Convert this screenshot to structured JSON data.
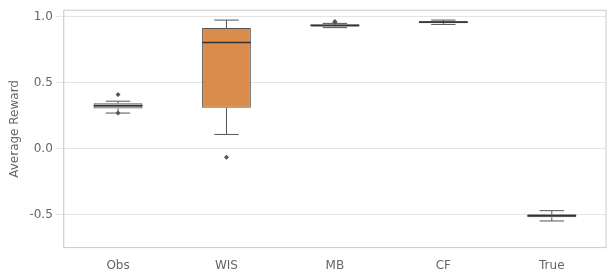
{
  "chart_data": {
    "type": "box",
    "categories": [
      "Obs",
      "WIS",
      "MB",
      "CF",
      "True"
    ],
    "ylabel": "Average Reward",
    "ylim": [
      -0.75,
      1.05
    ],
    "yticks": [
      -0.5,
      {
        "value": 0.0,
        "label": "0.0"
      },
      0.5,
      {
        "value": 1.0,
        "label": "1.0"
      }
    ],
    "grid": true,
    "colors": [
      "#999999",
      "#d4782a",
      "#999999",
      "#999999",
      "#7b6eb0"
    ],
    "boxes": [
      {
        "q1": 0.305,
        "median": 0.325,
        "q3": 0.345,
        "whislo": 0.27,
        "whishi": 0.36,
        "fliers": [
          0.27,
          0.41
        ]
      },
      {
        "q1": 0.31,
        "median": 0.805,
        "q3": 0.915,
        "whislo": 0.108,
        "whishi": 0.975,
        "fliers": [
          -0.065
        ]
      },
      {
        "q1": 0.925,
        "median": 0.935,
        "q3": 0.942,
        "whislo": 0.918,
        "whishi": 0.95,
        "fliers": [
          0.958,
          0.965
        ]
      },
      {
        "q1": 0.952,
        "median": 0.96,
        "q3": 0.966,
        "whislo": 0.942,
        "whishi": 0.975,
        "fliers": []
      },
      {
        "q1": -0.52,
        "median": -0.508,
        "q3": -0.498,
        "whislo": -0.548,
        "whishi": -0.47,
        "fliers": []
      }
    ]
  }
}
